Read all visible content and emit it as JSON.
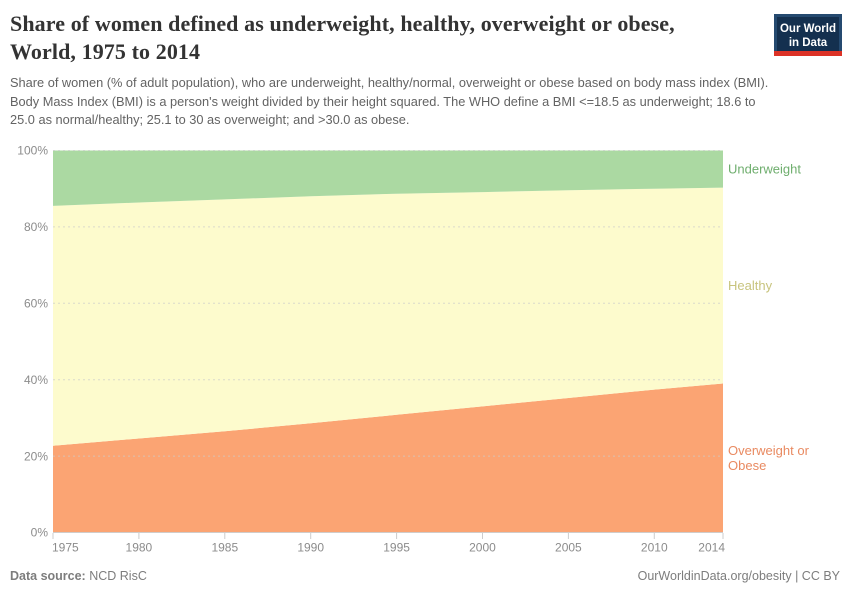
{
  "header": {
    "title": "Share of women defined as underweight, healthy, overweight or obese, World, 1975 to 2014",
    "subtitle": "Share of women (% of adult population), who are underweight, healthy/normal, overweight or obese based on body mass index (BMI). Body Mass Index (BMI) is a person's weight divided by their height squared. The WHO define a BMI <=18.5 as underweight; 18.6 to 25.0 as normal/healthy; 25.1 to 30 as overweight; and >30.0 as obese."
  },
  "logo": {
    "line1": "Our World",
    "line2": "in Data",
    "bg_color": "#14304f",
    "accent_color": "#dc3226"
  },
  "footer": {
    "datasource_label": "Data source:",
    "datasource_value": " NCD RisC",
    "credit": "OurWorldinData.org/obesity | CC BY"
  },
  "chart_data": {
    "type": "area",
    "stacked": true,
    "title": "Share of women defined as underweight, healthy, overweight or obese, World, 1975 to 2014",
    "xlabel": "",
    "ylabel": "",
    "xlim": [
      1975,
      2014
    ],
    "ylim": [
      0,
      100
    ],
    "grid": "dashed-horizontal",
    "legend_position": "right-of-plot",
    "x": [
      1975,
      1980,
      1985,
      1990,
      1995,
      2000,
      2005,
      2010,
      2014
    ],
    "xticks": [
      "1975",
      "1980",
      "1985",
      "1990",
      "1995",
      "2000",
      "2005",
      "2010",
      "2014"
    ],
    "yticks": [
      "0%",
      "20%",
      "40%",
      "60%",
      "80%",
      "100%"
    ],
    "ytick_values": [
      0,
      20,
      40,
      60,
      80,
      100
    ],
    "series": [
      {
        "name": "Overweight or Obese",
        "label_lines": [
          "Overweight or",
          "Obese"
        ],
        "color": "#fba473",
        "label_color": "#e98a61",
        "values": [
          22.7,
          24.6,
          26.5,
          28.6,
          30.8,
          33.0,
          35.2,
          37.4,
          39.0
        ]
      },
      {
        "name": "Healthy",
        "label_lines": [
          "Healthy"
        ],
        "color": "#fdfbcd",
        "label_color": "#c8c47e",
        "values": [
          62.8,
          61.8,
          60.7,
          59.4,
          57.9,
          56.1,
          54.4,
          52.6,
          51.3
        ]
      },
      {
        "name": "Underweight",
        "label_lines": [
          "Underweight"
        ],
        "color": "#abd9a2",
        "label_color": "#6fae6e",
        "values": [
          14.5,
          13.6,
          12.8,
          12.0,
          11.3,
          10.9,
          10.4,
          10.0,
          9.7
        ]
      }
    ],
    "axis_text_color": "#8c8c8c",
    "grid_color": "#cccccc"
  }
}
